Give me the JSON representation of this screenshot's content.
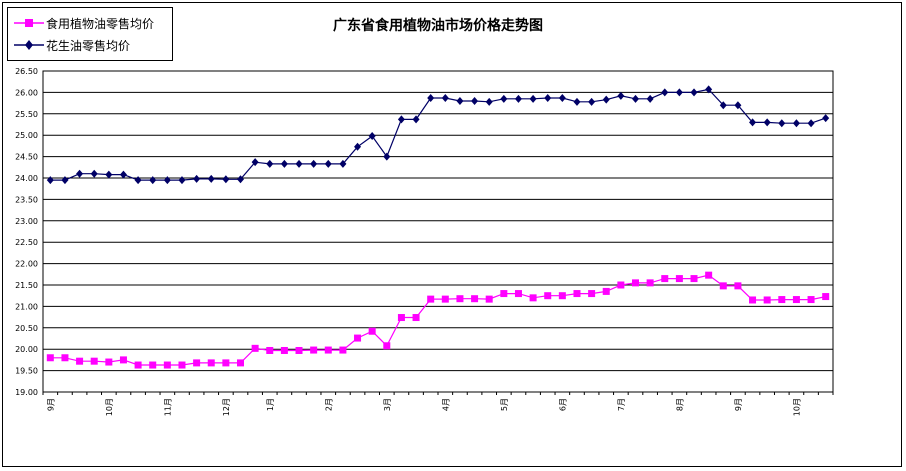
{
  "chart_data": {
    "type": "line",
    "title": "广东省食用植物油市场价格走势图",
    "ylim": [
      19.0,
      26.5
    ],
    "y_ticks": [
      "19.00",
      "19.50",
      "20.00",
      "20.50",
      "21.00",
      "21.50",
      "22.00",
      "22.50",
      "23.00",
      "23.50",
      "24.00",
      "24.50",
      "25.00",
      "25.50",
      "26.00",
      "26.50"
    ],
    "x_month_labels": [
      "9月",
      "10月",
      "11月",
      "12月",
      "1月",
      "2月",
      "3月",
      "4月",
      "5月",
      "6月",
      "7月",
      "8月",
      "9月",
      "10月"
    ],
    "x_month_label_index": [
      0,
      4,
      8,
      12,
      15,
      19,
      23,
      27,
      31,
      35,
      39,
      43,
      47,
      51
    ],
    "grid": "horizontal",
    "legend_position": "top-left",
    "series": [
      {
        "name": "食用植物油零售均价",
        "color": "#ff00ff",
        "marker": "square",
        "values": [
          19.8,
          19.8,
          19.72,
          19.72,
          19.7,
          19.75,
          19.63,
          19.63,
          19.63,
          19.63,
          19.68,
          19.68,
          19.68,
          19.68,
          20.02,
          19.97,
          19.97,
          19.97,
          19.98,
          19.98,
          19.98,
          20.26,
          20.42,
          20.08,
          20.74,
          20.74,
          21.17,
          21.17,
          21.18,
          21.18,
          21.17,
          21.3,
          21.3,
          21.2,
          21.25,
          21.25,
          21.3,
          21.3,
          21.35,
          21.5,
          21.55,
          21.55,
          21.65,
          21.65,
          21.65,
          21.73,
          21.48,
          21.48,
          21.15,
          21.15,
          21.16,
          21.16,
          21.16,
          21.23
        ]
      },
      {
        "name": "花生油零售均价",
        "color": "#000066",
        "marker": "diamond",
        "values": [
          23.95,
          23.95,
          24.1,
          24.1,
          24.08,
          24.08,
          23.95,
          23.95,
          23.95,
          23.95,
          23.98,
          23.98,
          23.97,
          23.97,
          24.37,
          24.33,
          24.33,
          24.33,
          24.33,
          24.33,
          24.33,
          24.73,
          24.98,
          24.5,
          25.37,
          25.37,
          25.87,
          25.87,
          25.8,
          25.8,
          25.78,
          25.85,
          25.85,
          25.85,
          25.87,
          25.87,
          25.78,
          25.78,
          25.83,
          25.92,
          25.85,
          25.85,
          26.0,
          26.0,
          26.0,
          26.07,
          25.7,
          25.7,
          25.3,
          25.3,
          25.28,
          25.28,
          25.28,
          25.4
        ]
      }
    ]
  }
}
